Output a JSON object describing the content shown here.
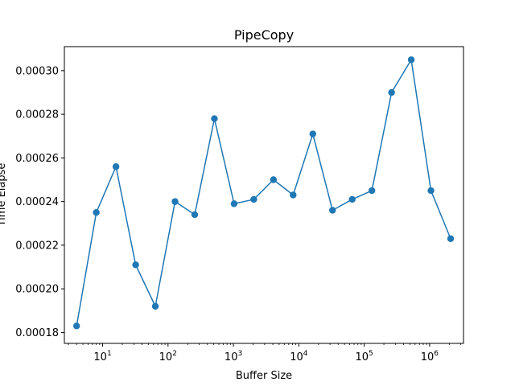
{
  "chart_data": {
    "type": "line",
    "title": "PipeCopy",
    "xlabel": "Buffer Size",
    "ylabel": "Time Elapse",
    "xscale": "log",
    "xlim": [
      2.6,
      3300000
    ],
    "ylim": [
      0.000175,
      0.000311
    ],
    "grid": false,
    "x_ticks": [
      {
        "value": 10,
        "base": "10",
        "exp": "1"
      },
      {
        "value": 100,
        "base": "10",
        "exp": "2"
      },
      {
        "value": 1000,
        "base": "10",
        "exp": "3"
      },
      {
        "value": 10000,
        "base": "10",
        "exp": "4"
      },
      {
        "value": 100000,
        "base": "10",
        "exp": "5"
      },
      {
        "value": 1000000,
        "base": "10",
        "exp": "6"
      }
    ],
    "y_ticks": [
      0.00018,
      0.0002,
      0.00022,
      0.00024,
      0.00026,
      0.00028,
      0.0003
    ],
    "y_tick_labels": [
      "0.00018",
      "0.00020",
      "0.00022",
      "0.00024",
      "0.00026",
      "0.00028",
      "0.00030"
    ],
    "series": [
      {
        "color": "#1f77b4",
        "marker": "circle",
        "x": [
          4,
          8,
          16,
          32,
          64,
          128,
          256,
          512,
          1024,
          2048,
          4096,
          8192,
          16384,
          32768,
          65536,
          131072,
          262144,
          524288,
          1048576,
          2097152
        ],
        "y": [
          0.000183,
          0.000235,
          0.000256,
          0.000211,
          0.000192,
          0.00024,
          0.000234,
          0.000278,
          0.000239,
          0.000241,
          0.00025,
          0.000243,
          0.000271,
          0.000236,
          0.000241,
          0.000245,
          0.00029,
          0.000305,
          0.000245,
          0.000223
        ]
      }
    ]
  }
}
